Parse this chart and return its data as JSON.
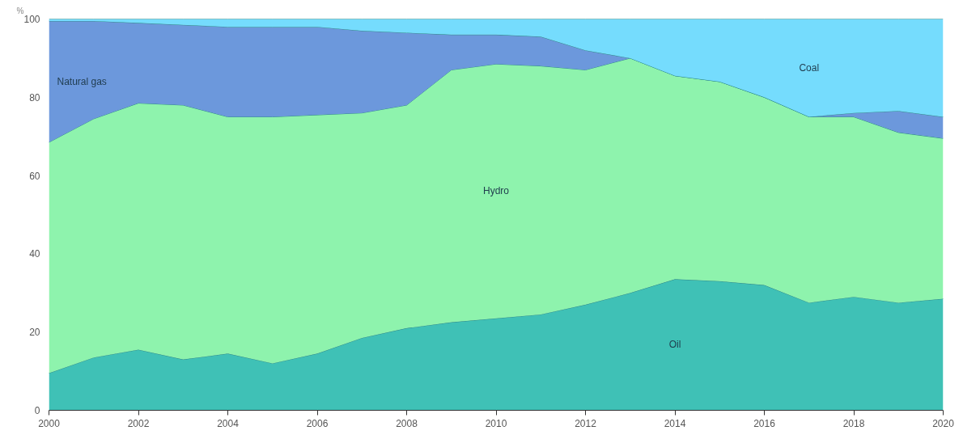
{
  "chart_data": {
    "type": "area",
    "stacked": true,
    "ylabel": "%",
    "x": [
      2000,
      2001,
      2002,
      2003,
      2004,
      2005,
      2006,
      2007,
      2008,
      2009,
      2010,
      2011,
      2012,
      2013,
      2014,
      2015,
      2016,
      2017,
      2018,
      2019,
      2020
    ],
    "series": [
      {
        "name": "Oil",
        "color": "#3fc1b6",
        "values": [
          9.5,
          13.5,
          15.5,
          13,
          14.5,
          12,
          14.5,
          18.5,
          21,
          22.5,
          23.5,
          24.5,
          27,
          30,
          33.5,
          33,
          32,
          27.5,
          29,
          27.5,
          28.5
        ]
      },
      {
        "name": "Hydro",
        "color": "#8ef3ad",
        "values": [
          59,
          61,
          63,
          65,
          60.5,
          63,
          61,
          57.5,
          57,
          64.5,
          65,
          63.5,
          60,
          60,
          52,
          51,
          48,
          47.5,
          46,
          43.5,
          41
        ]
      },
      {
        "name": "Natural gas",
        "color": "#6c98dc",
        "values": [
          31,
          25,
          20.5,
          20.5,
          23,
          23,
          22.5,
          21,
          18.5,
          9,
          7.5,
          7.5,
          5,
          0,
          0,
          0,
          0,
          0,
          1,
          5.5,
          5.5
        ]
      },
      {
        "name": "Coal",
        "color": "#75dcfd",
        "values": [
          0.5,
          0.5,
          1,
          1.5,
          2,
          2,
          2,
          3,
          3.5,
          4,
          4,
          4.5,
          8,
          10,
          14.5,
          16,
          20,
          25,
          24,
          23.5,
          25
        ]
      }
    ],
    "xlim": [
      2000,
      2020
    ],
    "ylim": [
      0,
      100
    ],
    "xticks": [
      2000,
      2002,
      2004,
      2006,
      2008,
      2010,
      2012,
      2014,
      2016,
      2018,
      2020
    ],
    "yticks": [
      0,
      20,
      40,
      60,
      80,
      100
    ]
  }
}
